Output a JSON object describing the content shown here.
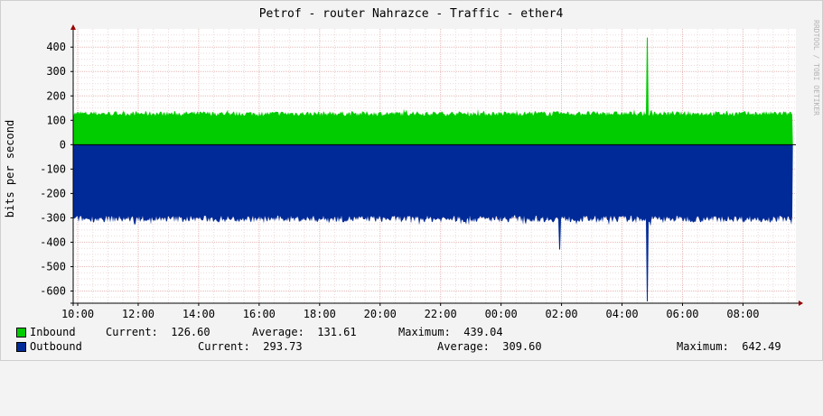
{
  "title": "Petrof - router Nahrazce - Traffic - ether4",
  "watermark": "RRDTOOL / TOBI OETIKER",
  "colors": {
    "inbound": "#00cc00",
    "outbound": "#002a97",
    "grid": "#e6b8b8",
    "axis": "#000000",
    "arrow": "#990000"
  },
  "chart_data": {
    "type": "area",
    "title": "Petrof - router Nahrazce - Traffic - ether4",
    "ylabel": "bits per second",
    "ylim": [
      -650,
      460
    ],
    "yticks": [
      -600,
      -500,
      -400,
      -300,
      -200,
      -100,
      0,
      100,
      200,
      300,
      400
    ],
    "xlim_hours": [
      9.85,
      33.75
    ],
    "xticks": [
      {
        "label": "10:00",
        "h": 10
      },
      {
        "label": "12:00",
        "h": 12
      },
      {
        "label": "14:00",
        "h": 14
      },
      {
        "label": "16:00",
        "h": 16
      },
      {
        "label": "18:00",
        "h": 18
      },
      {
        "label": "20:00",
        "h": 20
      },
      {
        "label": "22:00",
        "h": 22
      },
      {
        "label": "00:00",
        "h": 24
      },
      {
        "label": "02:00",
        "h": 26
      },
      {
        "label": "04:00",
        "h": 28
      },
      {
        "label": "06:00",
        "h": 30
      },
      {
        "label": "08:00",
        "h": 32
      }
    ],
    "data_start_h": 9.85,
    "data_end_h": 33.65,
    "series": [
      {
        "name": "Inbound",
        "typical": 128,
        "jitter": 10,
        "spikes": [
          {
            "h": 28.85,
            "value": 439.04
          }
        ]
      },
      {
        "name": "Outbound",
        "typical": -305,
        "jitter": 14,
        "spikes": [
          {
            "h": 28.85,
            "value": -642.49
          },
          {
            "h": 25.95,
            "value": -430
          }
        ]
      }
    ]
  },
  "legend": {
    "inbound": {
      "name": "Inbound",
      "current": "Current:  126.60",
      "average": "Average:  131.61",
      "maximum": "Maximum:  439.04"
    },
    "outbound": {
      "name": "Outbound",
      "current": "Current:  293.73",
      "average": "Average:  309.60",
      "maximum": "Maximum:  642.49"
    }
  }
}
